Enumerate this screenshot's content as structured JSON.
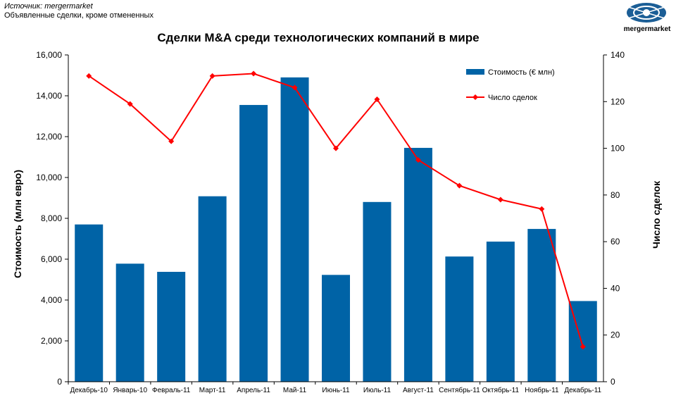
{
  "source": {
    "line1": "Источник: mergermarket",
    "line2": "Объявленные сделки, кроме отмененных"
  },
  "logo": {
    "text": "mergermarket",
    "color": "#1b5e96"
  },
  "chart_data": {
    "type": "bar",
    "title": "Сделки M&A среди технологических компаний в мире",
    "ylabel": "Стоимость  (млн евро)",
    "y2label": "Число сделок",
    "ylim": [
      0,
      16000
    ],
    "y2lim": [
      0,
      140
    ],
    "yticks": [
      "0",
      "2,000",
      "4,000",
      "6,000",
      "8,000",
      "10,000",
      "12,000",
      "14,000",
      "16,000"
    ],
    "y2ticks": [
      "0",
      "20",
      "40",
      "60",
      "80",
      "100",
      "120",
      "140"
    ],
    "categories": [
      "Декабрь-10",
      "Январь-10",
      "Февраль-11",
      "Март-11",
      "Апрель-11",
      "Май-11",
      "Июнь-11",
      "Июль-11",
      "Август-11",
      "Сентябрь-11",
      "Октябрь-11",
      "Ноябрь-11",
      "Декабрь-11"
    ],
    "series": [
      {
        "name": "Стоимость (€ млн)",
        "type": "bar",
        "axis": "left",
        "color": "#0063a6",
        "values": [
          7700,
          5780,
          5380,
          9080,
          13550,
          14900,
          5230,
          8800,
          11450,
          6130,
          6860,
          7480,
          3950
        ]
      },
      {
        "name": "Число сделок",
        "type": "line",
        "axis": "right",
        "color": "#ff0000",
        "values": [
          131,
          119,
          103,
          131,
          132,
          126,
          100,
          121,
          95,
          84,
          78,
          74,
          15
        ]
      }
    ],
    "grid": false,
    "legend": "top-right"
  }
}
